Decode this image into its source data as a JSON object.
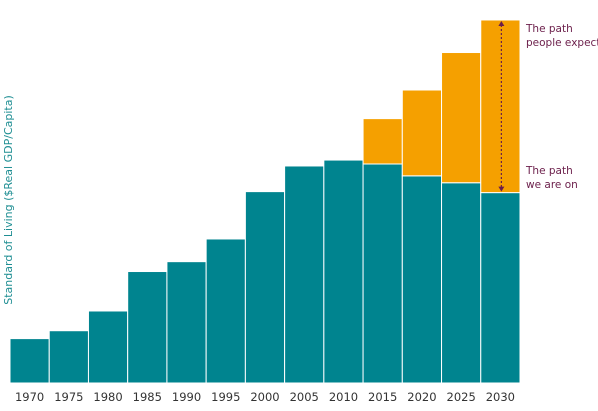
{
  "chart_data": {
    "type": "bar",
    "stacked": true,
    "ylabel": "Standard of Living ($Real GDP/Capita)",
    "xlabel": "",
    "title": "",
    "categories": [
      "1970",
      "1975",
      "1980",
      "1985",
      "1990",
      "1995",
      "2000",
      "2005",
      "2010",
      "2015",
      "2020",
      "2025",
      "2030"
    ],
    "series": [
      {
        "values": [
          45,
          53,
          73,
          113,
          123,
          146,
          194,
          220,
          226,
          222,
          210,
          203,
          193
        ]
      },
      {
        "values": [
          0,
          0,
          0,
          0,
          0,
          0,
          0,
          0,
          0,
          46,
          87,
          132,
          175
        ]
      }
    ],
    "ylim": [
      0,
      370
    ],
    "grid": false,
    "legend": "none",
    "annotations": [
      {
        "lines": [
          "The path",
          "people expect"
        ],
        "anchor_category": "2030"
      },
      {
        "lines": [
          "The path",
          "we are on"
        ],
        "anchor_category": "2030"
      }
    ],
    "colors": {
      "teal": "#00848F",
      "orange": "#F5A000",
      "label": "#1F8E93",
      "annotation": "#6B1E4A",
      "axis": "#333333"
    }
  }
}
